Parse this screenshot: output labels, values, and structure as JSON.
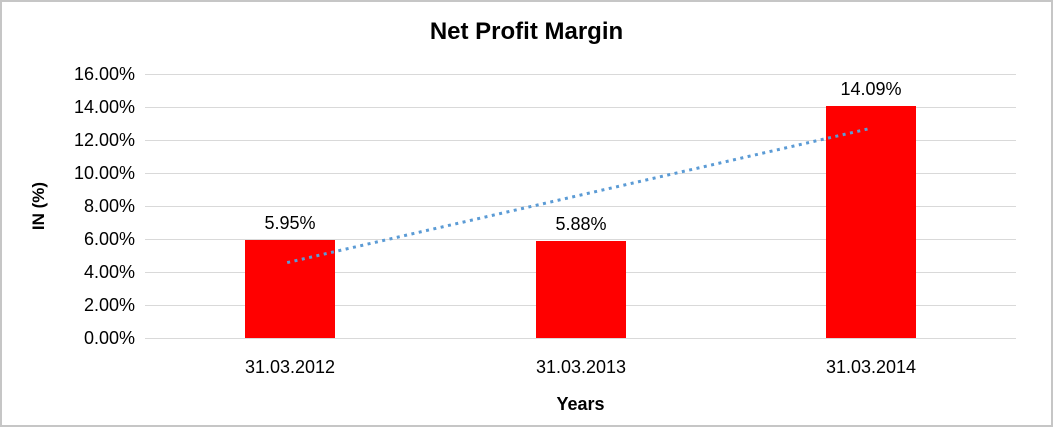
{
  "chart_data": {
    "type": "bar",
    "title": "Net Profit Margin",
    "xlabel": "Years",
    "ylabel": "IN (%)",
    "categories": [
      "31.03.2012",
      "31.03.2013",
      "31.03.2014"
    ],
    "values": [
      5.95,
      5.88,
      14.09
    ],
    "data_labels": [
      "5.95%",
      "5.88%",
      "14.09%"
    ],
    "ylim": [
      0,
      16
    ],
    "ytick_step": 2,
    "ytick_labels": [
      "0.00%",
      "2.00%",
      "4.00%",
      "6.00%",
      "8.00%",
      "10.00%",
      "12.00%",
      "14.00%",
      "16.00%"
    ],
    "grid": true,
    "legend": false,
    "bar_color": "#FF0000",
    "gridline_color": "#D9D9D9",
    "border_color": "#C6C6C6",
    "text_color": "#000000",
    "trendline": {
      "type": "linear",
      "style": "dotted",
      "color": "#5B9BD5",
      "start_value": 4.57,
      "end_value": 12.71
    }
  }
}
